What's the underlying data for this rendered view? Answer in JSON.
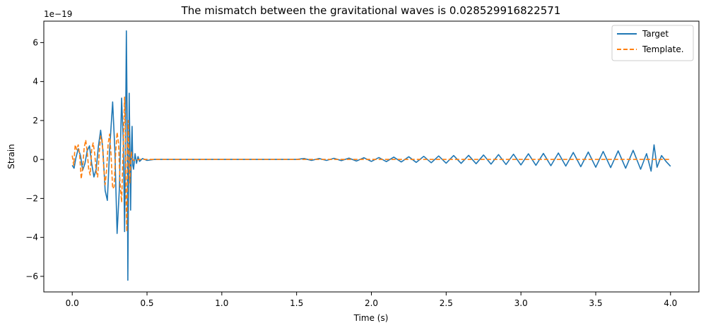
{
  "chart_data": {
    "type": "line",
    "title": "The mismatch between the gravitational waves is 0.028529916822571",
    "xlabel": "Time (s)",
    "ylabel": "Strain",
    "y_offset_label": "1e−19",
    "xlim": [
      -0.19,
      4.19
    ],
    "ylim": [
      -6.8,
      7.1
    ],
    "x_ticks": [
      0.0,
      0.5,
      1.0,
      1.5,
      2.0,
      2.5,
      3.0,
      3.5,
      4.0
    ],
    "x_tick_labels": [
      "0.0",
      "0.5",
      "1.0",
      "1.5",
      "2.0",
      "2.5",
      "3.0",
      "3.5",
      "4.0"
    ],
    "y_ticks": [
      -6,
      -4,
      -2,
      0,
      2,
      4,
      6
    ],
    "y_tick_labels": [
      "−6",
      "−4",
      "−2",
      "0",
      "2",
      "4",
      "6"
    ],
    "grid": false,
    "legend_position": "top-right",
    "series": [
      {
        "name": "Target",
        "color": "#1f77b4",
        "style": "solid",
        "points": [
          [
            0.0,
            -0.3
          ],
          [
            0.012,
            -0.45
          ],
          [
            0.025,
            0.1
          ],
          [
            0.04,
            0.55
          ],
          [
            0.055,
            0.2
          ],
          [
            0.07,
            -0.55
          ],
          [
            0.085,
            -0.2
          ],
          [
            0.1,
            0.45
          ],
          [
            0.115,
            0.7
          ],
          [
            0.13,
            -0.2
          ],
          [
            0.145,
            -0.9
          ],
          [
            0.16,
            -0.5
          ],
          [
            0.175,
            0.7
          ],
          [
            0.19,
            1.5
          ],
          [
            0.205,
            0.5
          ],
          [
            0.22,
            -1.6
          ],
          [
            0.235,
            -2.1
          ],
          [
            0.25,
            0.5
          ],
          [
            0.27,
            2.95
          ],
          [
            0.285,
            0.5
          ],
          [
            0.3,
            -3.8
          ],
          [
            0.315,
            -1.5
          ],
          [
            0.33,
            3.15
          ],
          [
            0.342,
            0.8
          ],
          [
            0.35,
            -3.7
          ],
          [
            0.356,
            1.0
          ],
          [
            0.362,
            6.6
          ],
          [
            0.368,
            1.5
          ],
          [
            0.372,
            -6.2
          ],
          [
            0.376,
            -1.5
          ],
          [
            0.381,
            3.4
          ],
          [
            0.386,
            0.5
          ],
          [
            0.39,
            -2.6
          ],
          [
            0.395,
            0.3
          ],
          [
            0.4,
            1.7
          ],
          [
            0.405,
            -0.3
          ],
          [
            0.41,
            -0.5
          ],
          [
            0.42,
            0.3
          ],
          [
            0.43,
            -0.2
          ],
          [
            0.44,
            0.15
          ],
          [
            0.45,
            -0.1
          ],
          [
            0.47,
            0.05
          ],
          [
            0.5,
            -0.05
          ],
          [
            0.55,
            0.0
          ],
          [
            1.0,
            0.0
          ],
          [
            1.4,
            0.0
          ],
          [
            1.5,
            0.0
          ],
          [
            1.55,
            0.05
          ],
          [
            1.6,
            -0.05
          ],
          [
            1.65,
            0.05
          ],
          [
            1.7,
            -0.05
          ],
          [
            1.75,
            0.06
          ],
          [
            1.8,
            -0.06
          ],
          [
            1.85,
            0.07
          ],
          [
            1.9,
            -0.08
          ],
          [
            1.95,
            0.09
          ],
          [
            2.0,
            -0.1
          ],
          [
            2.05,
            0.1
          ],
          [
            2.1,
            -0.11
          ],
          [
            2.15,
            0.12
          ],
          [
            2.2,
            -0.13
          ],
          [
            2.25,
            0.14
          ],
          [
            2.3,
            -0.15
          ],
          [
            2.35,
            0.16
          ],
          [
            2.4,
            -0.17
          ],
          [
            2.45,
            0.18
          ],
          [
            2.5,
            -0.19
          ],
          [
            2.55,
            0.2
          ],
          [
            2.6,
            -0.2
          ],
          [
            2.65,
            0.21
          ],
          [
            2.7,
            -0.22
          ],
          [
            2.75,
            0.23
          ],
          [
            2.8,
            -0.24
          ],
          [
            2.85,
            0.25
          ],
          [
            2.9,
            -0.26
          ],
          [
            2.95,
            0.27
          ],
          [
            3.0,
            -0.28
          ],
          [
            3.05,
            0.29
          ],
          [
            3.1,
            -0.3
          ],
          [
            3.15,
            0.31
          ],
          [
            3.2,
            -0.32
          ],
          [
            3.25,
            0.33
          ],
          [
            3.3,
            -0.34
          ],
          [
            3.35,
            0.36
          ],
          [
            3.4,
            -0.37
          ],
          [
            3.45,
            0.38
          ],
          [
            3.5,
            -0.4
          ],
          [
            3.55,
            0.41
          ],
          [
            3.6,
            -0.42
          ],
          [
            3.65,
            0.44
          ],
          [
            3.7,
            -0.45
          ],
          [
            3.75,
            0.47
          ],
          [
            3.8,
            -0.5
          ],
          [
            3.84,
            0.3
          ],
          [
            3.87,
            -0.6
          ],
          [
            3.89,
            0.75
          ],
          [
            3.91,
            -0.4
          ],
          [
            3.94,
            0.2
          ],
          [
            3.97,
            -0.1
          ],
          [
            4.0,
            -0.35
          ]
        ]
      },
      {
        "name": "Template.",
        "color": "#ff7f0e",
        "style": "dashed",
        "points": [
          [
            0.0,
            0.2
          ],
          [
            0.01,
            -0.3
          ],
          [
            0.02,
            0.75
          ],
          [
            0.03,
            0.5
          ],
          [
            0.04,
            0.75
          ],
          [
            0.05,
            0.2
          ],
          [
            0.06,
            -1.0
          ],
          [
            0.07,
            -0.4
          ],
          [
            0.08,
            0.6
          ],
          [
            0.09,
            1.0
          ],
          [
            0.1,
            0.4
          ],
          [
            0.11,
            -0.5
          ],
          [
            0.12,
            -0.8
          ],
          [
            0.13,
            0.5
          ],
          [
            0.14,
            0.85
          ],
          [
            0.15,
            0.3
          ],
          [
            0.16,
            -0.6
          ],
          [
            0.17,
            -0.9
          ],
          [
            0.18,
            0.3
          ],
          [
            0.19,
            1.2
          ],
          [
            0.2,
            1.0
          ],
          [
            0.21,
            -0.4
          ],
          [
            0.22,
            -1.3
          ],
          [
            0.23,
            -0.5
          ],
          [
            0.24,
            0.8
          ],
          [
            0.25,
            1.3
          ],
          [
            0.26,
            0.2
          ],
          [
            0.27,
            -1.5
          ],
          [
            0.28,
            -1.4
          ],
          [
            0.29,
            0.3
          ],
          [
            0.3,
            1.4
          ],
          [
            0.31,
            0.8
          ],
          [
            0.32,
            -1.2
          ],
          [
            0.33,
            -2.2
          ],
          [
            0.34,
            0.5
          ],
          [
            0.35,
            3.2
          ],
          [
            0.355,
            1.5
          ],
          [
            0.36,
            -2.0
          ],
          [
            0.365,
            -3.7
          ],
          [
            0.37,
            0.0
          ],
          [
            0.375,
            2.0
          ],
          [
            0.38,
            0.3
          ],
          [
            0.385,
            -1.2
          ],
          [
            0.39,
            -0.2
          ],
          [
            0.395,
            0.4
          ],
          [
            0.4,
            0.05
          ],
          [
            0.41,
            -0.05
          ],
          [
            0.45,
            0.0
          ],
          [
            4.0,
            0.0
          ]
        ]
      }
    ]
  }
}
